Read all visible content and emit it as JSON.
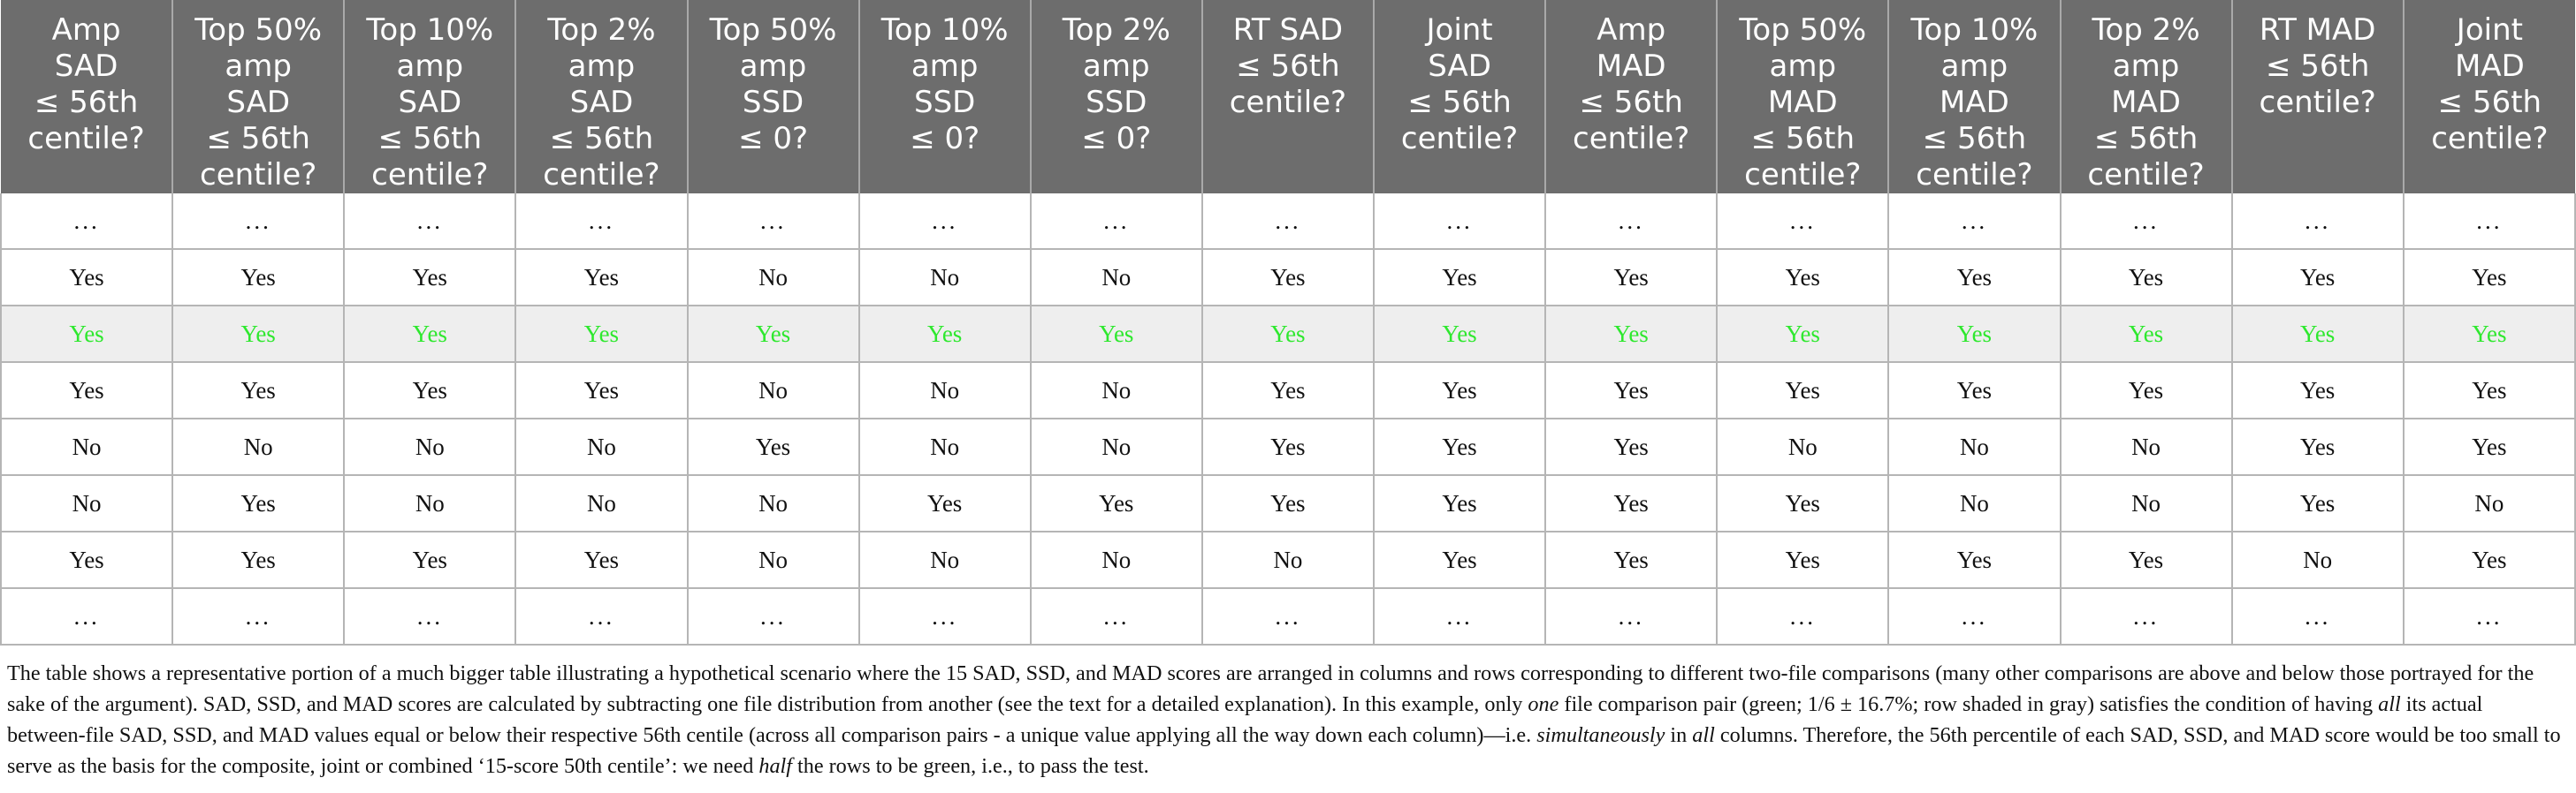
{
  "table": {
    "headers": [
      [
        "Amp",
        "SAD",
        "≤ 56th",
        "centile?"
      ],
      [
        "Top 50%",
        "amp",
        "SAD",
        "≤ 56th",
        "centile?"
      ],
      [
        "Top 10%",
        "amp",
        "SAD",
        "≤ 56th",
        "centile?"
      ],
      [
        "Top 2%",
        "amp",
        "SAD",
        "≤ 56th",
        "centile?"
      ],
      [
        "Top 50%",
        "amp",
        "SSD",
        "≤ 0?"
      ],
      [
        "Top 10%",
        "amp",
        "SSD",
        "≤ 0?"
      ],
      [
        "Top 2%",
        "amp",
        "SSD",
        "≤ 0?"
      ],
      [
        "RT SAD",
        "≤ 56th",
        "centile?"
      ],
      [
        "Joint",
        "SAD",
        "≤ 56th",
        "centile?"
      ],
      [
        "Amp",
        "MAD",
        "≤ 56th",
        "centile?"
      ],
      [
        "Top 50%",
        "amp",
        "MAD",
        "≤ 56th",
        "centile?"
      ],
      [
        "Top 10%",
        "amp",
        "MAD",
        "≤ 56th",
        "centile?"
      ],
      [
        "Top 2%",
        "amp",
        "MAD",
        "≤ 56th",
        "centile?"
      ],
      [
        "RT MAD",
        "≤ 56th",
        "centile?"
      ],
      [
        "Joint",
        "MAD",
        "≤ 56th",
        "centile?"
      ]
    ],
    "rows": [
      [
        "...",
        "...",
        "...",
        "...",
        "...",
        "...",
        "...",
        "...",
        "...",
        "...",
        "...",
        "...",
        "...",
        "...",
        "..."
      ],
      [
        "Yes",
        "Yes",
        "Yes",
        "Yes",
        "No",
        "No",
        "No",
        "Yes",
        "Yes",
        "Yes",
        "Yes",
        "Yes",
        "Yes",
        "Yes",
        "Yes"
      ],
      [
        "Yes",
        "Yes",
        "Yes",
        "Yes",
        "Yes",
        "Yes",
        "Yes",
        "Yes",
        "Yes",
        "Yes",
        "Yes",
        "Yes",
        "Yes",
        "Yes",
        "Yes"
      ],
      [
        "Yes",
        "Yes",
        "Yes",
        "Yes",
        "No",
        "No",
        "No",
        "Yes",
        "Yes",
        "Yes",
        "Yes",
        "Yes",
        "Yes",
        "Yes",
        "Yes"
      ],
      [
        "No",
        "No",
        "No",
        "No",
        "Yes",
        "No",
        "No",
        "Yes",
        "Yes",
        "Yes",
        "No",
        "No",
        "No",
        "Yes",
        "Yes"
      ],
      [
        "No",
        "Yes",
        "No",
        "No",
        "No",
        "Yes",
        "Yes",
        "Yes",
        "Yes",
        "Yes",
        "Yes",
        "No",
        "No",
        "Yes",
        "No"
      ],
      [
        "Yes",
        "Yes",
        "Yes",
        "Yes",
        "No",
        "No",
        "No",
        "No",
        "Yes",
        "Yes",
        "Yes",
        "Yes",
        "Yes",
        "No",
        "Yes"
      ],
      [
        "...",
        "...",
        "...",
        "...",
        "...",
        "...",
        "...",
        "...",
        "...",
        "...",
        "...",
        "...",
        "...",
        "...",
        "..."
      ]
    ],
    "highlight_row_index": 2,
    "colors": {
      "header_bg": "#6d6d6d",
      "header_text": "#ffffff",
      "no_text": "#e00000",
      "highlight_text": "#2ee82e",
      "highlight_bg": "#eeeeee"
    }
  },
  "caption": {
    "part1": "The table shows a representative portion of a much bigger table illustrating a hypothetical scenario where the 15 SAD, SSD, and MAD scores are arranged in columns and rows corresponding to different two-file comparisons (many other comparisons are above and below those portrayed for the sake of the argument). SAD, SSD, and MAD scores are calculated by subtracting one file distribution from another (see the text for a detailed explanation). In this example, only ",
    "em1": "one",
    "part2": " file comparison pair (green; 1/6 ± 16.7%; row shaded in gray) satisfies the condition of having ",
    "em2": "all",
    "part3": " its actual between-file SAD, SSD, and MAD values equal or below their respective 56th centile (across all comparison pairs - a unique value applying all the way down each column)—i.e. ",
    "em3": "simultaneously",
    "part4": " in ",
    "em4": "all",
    "part5": " columns. Therefore, the 56th percentile of each SAD, SSD, and MAD score would be too small to serve as the basis for the composite, joint or combined ‘15-score 50th centile’: we need ",
    "em5": "half",
    "part6": " the rows to be green, i.e., to pass the test."
  }
}
